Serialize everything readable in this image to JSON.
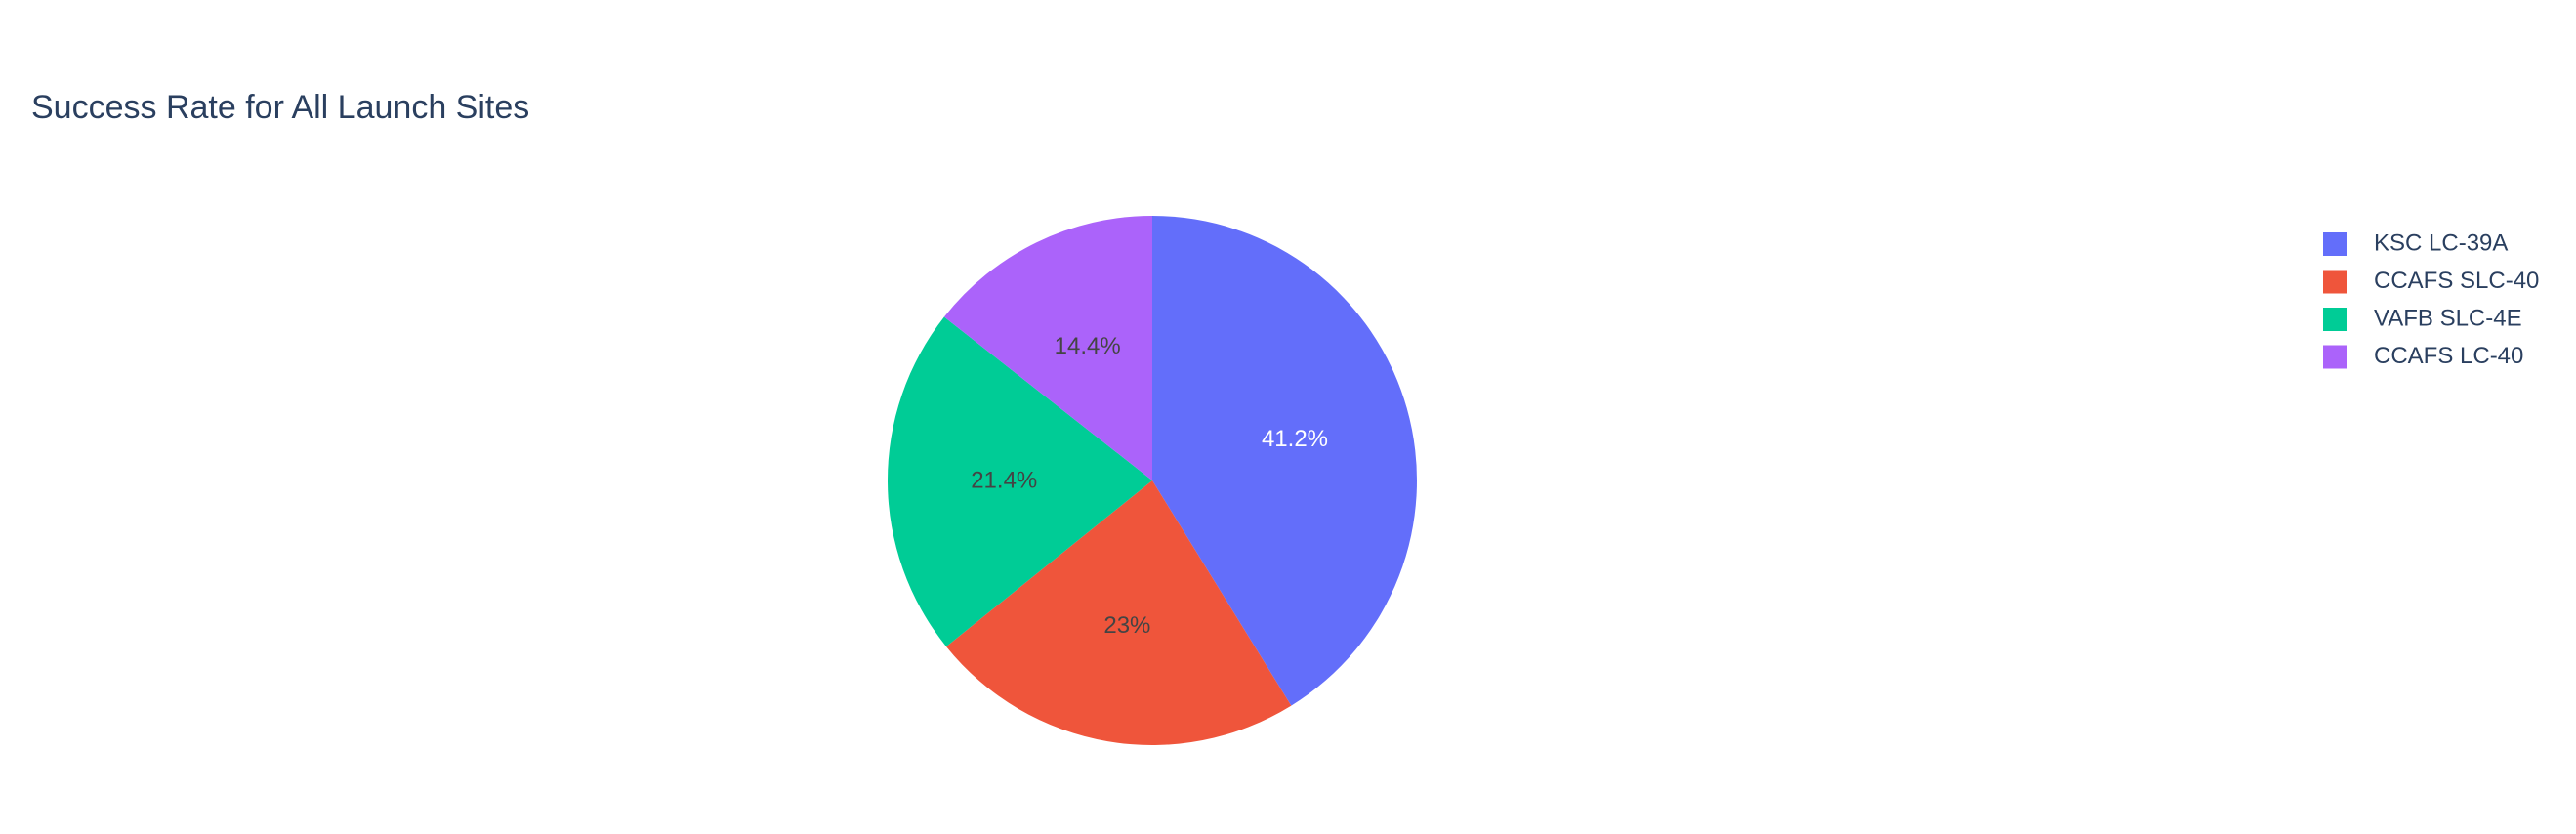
{
  "chart_data": {
    "type": "pie",
    "title": "Success Rate for All Launch Sites",
    "categories": [
      "KSC LC-39A",
      "CCAFS SLC-40",
      "VAFB SLC-4E",
      "CCAFS LC-40"
    ],
    "values": [
      41.2,
      23,
      21.4,
      14.4
    ],
    "labels": [
      "41.2%",
      "23%",
      "21.4%",
      "14.4%"
    ],
    "colors": [
      "#636efa",
      "#EF553B",
      "#00cc96",
      "#ab63fa"
    ],
    "label_colors": [
      "#ffffff",
      "#444444",
      "#444444",
      "#444444"
    ],
    "direction": "clockwise",
    "start": "12 o'clock",
    "legend": {
      "position": "top-right",
      "entries": [
        "KSC LC-39A",
        "CCAFS SLC-40",
        "VAFB SLC-4E",
        "CCAFS LC-40"
      ]
    }
  }
}
